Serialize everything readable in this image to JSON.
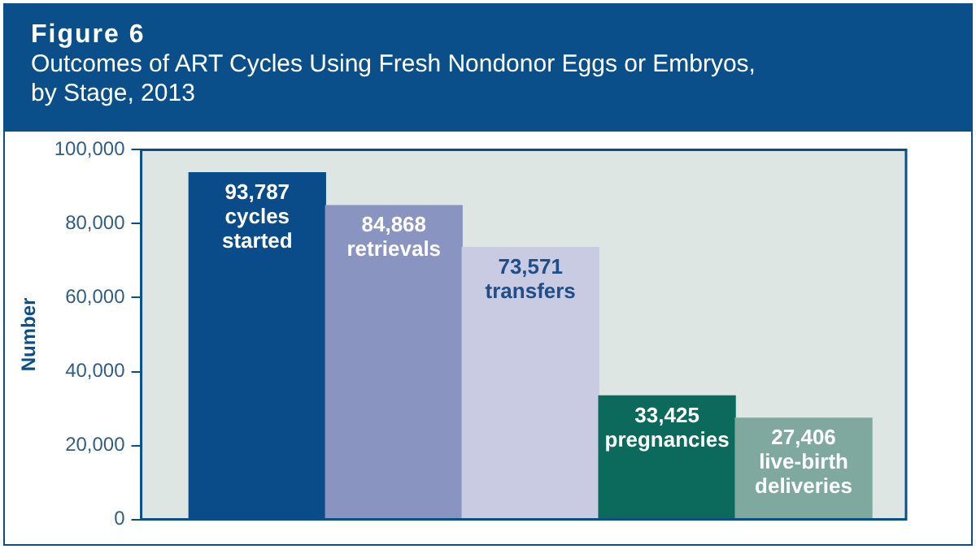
{
  "chart_data": {
    "type": "bar",
    "title": "Figure 6",
    "subtitle": "Outcomes of ART Cycles Using Fresh Nondonor Eggs or Embryos, by Stage, 2013",
    "ylabel": "Number",
    "categories": [
      "cycles started",
      "retrievals",
      "transfers",
      "pregnancies",
      "live-birth deliveries"
    ],
    "values": [
      93787,
      84868,
      73571,
      33425,
      27406
    ],
    "value_labels": [
      "93,787",
      "84,868",
      "73,571",
      "33,425",
      "27,406"
    ],
    "colors": [
      "#0a4b8a",
      "#8a94c0",
      "#c8cbe2",
      "#0b6a5c",
      "#7fa89e"
    ],
    "ylim": [
      0,
      100000
    ],
    "yticks": [
      0,
      {
        "value": 20000,
        "label": "20,000"
      },
      {
        "value": 40000,
        "label": "40,000"
      },
      {
        "value": 60000,
        "label": "60,000"
      },
      {
        "value": 80000,
        "label": "80,000"
      },
      {
        "value": 100000,
        "label": "100,000"
      }
    ],
    "grid": false,
    "legend": false,
    "tick_labels": "y"
  }
}
